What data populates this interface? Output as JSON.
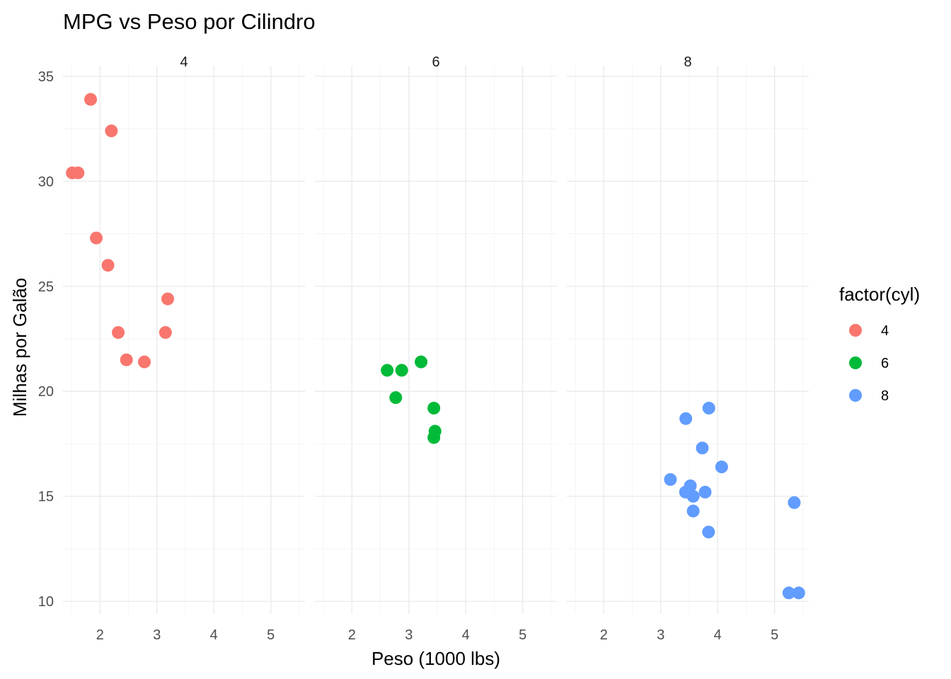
{
  "chart_data": {
    "type": "scatter",
    "title": "MPG vs Peso por Cilindro",
    "xlabel": "Peso (1000 lbs)",
    "ylabel": "Milhas por Galão",
    "xlim": [
      1.35,
      5.6
    ],
    "ylim": [
      9.4,
      35.5
    ],
    "xticks": [
      2,
      3,
      4,
      5
    ],
    "yticks": [
      10,
      15,
      20,
      25,
      30,
      35
    ],
    "grid": true,
    "legend": {
      "title": "factor(cyl)",
      "position": "right",
      "entries": [
        {
          "label": "4",
          "color": "#F8766D"
        },
        {
          "label": "6",
          "color": "#00BA38"
        },
        {
          "label": "8",
          "color": "#619CFF"
        }
      ]
    },
    "facets": [
      {
        "label": "4",
        "color": "#F8766D",
        "points": [
          {
            "x": 1.513,
            "y": 30.4
          },
          {
            "x": 1.615,
            "y": 30.4
          },
          {
            "x": 1.835,
            "y": 33.9
          },
          {
            "x": 1.935,
            "y": 27.3
          },
          {
            "x": 2.14,
            "y": 26.0
          },
          {
            "x": 2.2,
            "y": 32.4
          },
          {
            "x": 2.32,
            "y": 22.8
          },
          {
            "x": 2.465,
            "y": 21.5
          },
          {
            "x": 2.78,
            "y": 21.4
          },
          {
            "x": 3.15,
            "y": 22.8
          },
          {
            "x": 3.19,
            "y": 24.4
          }
        ]
      },
      {
        "label": "6",
        "color": "#00BA38",
        "points": [
          {
            "x": 2.62,
            "y": 21.0
          },
          {
            "x": 2.77,
            "y": 19.7
          },
          {
            "x": 2.875,
            "y": 21.0
          },
          {
            "x": 3.215,
            "y": 21.4
          },
          {
            "x": 3.44,
            "y": 19.2
          },
          {
            "x": 3.44,
            "y": 17.8
          },
          {
            "x": 3.46,
            "y": 18.1
          }
        ]
      },
      {
        "label": "8",
        "color": "#619CFF",
        "points": [
          {
            "x": 3.17,
            "y": 15.8
          },
          {
            "x": 3.435,
            "y": 15.2
          },
          {
            "x": 3.44,
            "y": 18.7
          },
          {
            "x": 3.52,
            "y": 15.5
          },
          {
            "x": 3.57,
            "y": 14.3
          },
          {
            "x": 3.57,
            "y": 15.0
          },
          {
            "x": 3.73,
            "y": 17.3
          },
          {
            "x": 3.78,
            "y": 15.2
          },
          {
            "x": 3.84,
            "y": 13.3
          },
          {
            "x": 3.845,
            "y": 19.2
          },
          {
            "x": 4.07,
            "y": 16.4
          },
          {
            "x": 5.25,
            "y": 10.4
          },
          {
            "x": 5.345,
            "y": 14.7
          },
          {
            "x": 5.424,
            "y": 10.4
          }
        ]
      }
    ]
  }
}
